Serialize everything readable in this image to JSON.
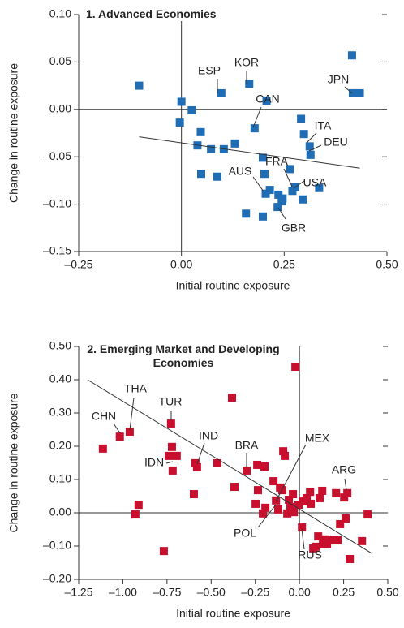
{
  "chart_data": [
    {
      "type": "scatter",
      "title": "1. Advanced Economies",
      "x_label": "Initial routine exposure",
      "y_label": "Change in routine exposure",
      "xlim": [
        -0.25,
        0.5
      ],
      "ylim": [
        -0.15,
        0.1
      ],
      "xticks": [
        {
          "value": -0.25,
          "label": "–0.25"
        },
        {
          "value": 0,
          "label": "0.00"
        },
        {
          "value": 0.25,
          "label": "0.25"
        },
        {
          "value": 0.5,
          "label": "0.50"
        }
      ],
      "yticks": [
        {
          "value": -0.15,
          "label": "–0.15"
        },
        {
          "value": -0.1,
          "label": "–0.10"
        },
        {
          "value": -0.05,
          "label": "–0.05"
        },
        {
          "value": 0,
          "label": "0.00"
        },
        {
          "value": 0.05,
          "label": "0.05"
        },
        {
          "value": 0.1,
          "label": "0.10"
        }
      ],
      "series": [
        {
          "color": "#1f6db4",
          "x": [
            -0.103,
            0,
            -0.004,
            0.025,
            0.047,
            0.039,
            0.048,
            0.072,
            0.103,
            0.097,
            0.087,
            0.13,
            0.165,
            0.157,
            0.198,
            0.178,
            0.207,
            0.198,
            0.202,
            0.205,
            0.215,
            0.236,
            0.244,
            0.234,
            0.246,
            0.264,
            0.27,
            0.277,
            0.291,
            0.298,
            0.295,
            0.312,
            0.314,
            0.335,
            0.415,
            0.417,
            0.434
          ],
          "values": [
            0.025,
            0.008,
            -0.014,
            -0.001,
            -0.024,
            -0.038,
            -0.068,
            -0.042,
            -0.042,
            0.017,
            -0.071,
            -0.036,
            0.027,
            -0.11,
            -0.113,
            -0.02,
            0.009,
            -0.051,
            -0.068,
            -0.089,
            -0.085,
            -0.09,
            -0.097,
            -0.103,
            -0.094,
            -0.063,
            -0.086,
            -0.082,
            -0.01,
            -0.026,
            -0.095,
            -0.039,
            -0.048,
            -0.083,
            0.057,
            0.017,
            0.017
          ]
        }
      ],
      "trendline": {
        "x": [
          -0.103,
          0.434
        ],
        "values": [
          -0.029,
          -0.062
        ]
      },
      "annotations": [
        "ESP",
        "KOR",
        "JPN",
        "CAN",
        "ITA",
        "FRA",
        "DEU",
        "AUS",
        "USA",
        "GBR"
      ]
    },
    {
      "type": "scatter",
      "title": "2. Emerging Market and Developing Economies",
      "x_label": "Initial routine exposure",
      "y_label": "Change in routine exposure",
      "xlim": [
        -1.25,
        0.5
      ],
      "ylim": [
        -0.2,
        0.5
      ],
      "xticks": [
        {
          "value": -1.25,
          "label": "–1.25"
        },
        {
          "value": -1,
          "label": "–1.00"
        },
        {
          "value": -0.75,
          "label": "–0.75"
        },
        {
          "value": -0.5,
          "label": "–0.50"
        },
        {
          "value": -0.25,
          "label": "–0.25"
        },
        {
          "value": 0,
          "label": "0.00"
        },
        {
          "value": 0.25,
          "label": "0.25"
        },
        {
          "value": 0.5,
          "label": "0.50"
        }
      ],
      "yticks": [
        {
          "value": -0.2,
          "label": "–0.20"
        },
        {
          "value": -0.1,
          "label": "–0.10"
        },
        {
          "value": 0,
          "label": "0.00"
        },
        {
          "value": 0.1,
          "label": "0.10"
        },
        {
          "value": 0.2,
          "label": "0.20"
        },
        {
          "value": 0.3,
          "label": "0.30"
        },
        {
          "value": 0.4,
          "label": "0.40"
        },
        {
          "value": 0.5,
          "label": "0.50"
        }
      ],
      "series": [
        {
          "color": "#c8102e",
          "x": [
            -1.113,
            -1.017,
            -0.961,
            -0.911,
            -0.929,
            -0.768,
            -0.727,
            -0.722,
            -0.718,
            -0.695,
            -0.74,
            -0.589,
            -0.58,
            -0.598,
            -0.465,
            -0.299,
            -0.368,
            -0.382,
            -0.235,
            -0.239,
            -0.198,
            -0.248,
            -0.207,
            -0.193,
            -0.147,
            -0.133,
            -0.12,
            -0.11,
            -0.097,
            -0.092,
            -0.083,
            -0.069,
            -0.06,
            -0.051,
            -0.032,
            -0.023,
            -0.037,
            -0.005,
            0.014,
            0.018,
            0.041,
            0.06,
            0.064,
            0.078,
            0.092,
            0.106,
            0.115,
            0.129,
            0.133,
            0.147,
            0.156,
            0.17,
            0.193,
            0.216,
            0.207,
            0.23,
            0.262,
            0.271,
            0.253,
            0.285,
            0.354,
            0.386
          ],
          "values": [
            0.193,
            0.229,
            0.244,
            0.024,
            -0.005,
            -0.115,
            0.268,
            0.198,
            0.127,
            0.171,
            0.171,
            0.149,
            0.137,
            0.056,
            0.149,
            0.127,
            0.078,
            0.346,
            0.068,
            0.144,
            0.139,
            0.027,
            -0.002,
            0.015,
            0.095,
            0.037,
            0.01,
            0.076,
            0.068,
            0.185,
            0.171,
            -0.002,
            0.039,
            0.017,
            0.002,
            0.439,
            0.056,
            0.024,
            -0.044,
            0.034,
            0.044,
            0.063,
            0.027,
            -0.107,
            -0.102,
            -0.071,
            0.044,
            0.066,
            -0.095,
            -0.08,
            -0.093,
            -0.083,
            -0.083,
            -0.083,
            0.059,
            -0.034,
            -0.017,
            0.059,
            0.046,
            -0.139,
            -0.085,
            -0.005
          ]
        }
      ],
      "trendline": {
        "x": [
          -1.2,
          0.41
        ],
        "values": [
          0.4,
          -0.122
        ]
      },
      "annotations": [
        "THA",
        "TUR",
        "CHN",
        "IND",
        "IDN",
        "BRA",
        "MEX",
        "ARG",
        "POL",
        "RUS"
      ]
    }
  ]
}
